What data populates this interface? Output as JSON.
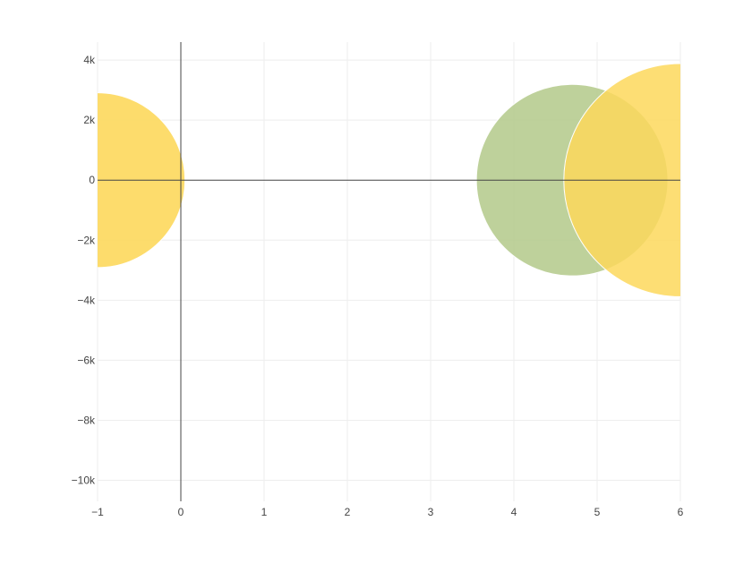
{
  "chart_data": {
    "type": "scatter",
    "subtype": "bubble",
    "title": "",
    "xlabel": "",
    "ylabel": "",
    "xlim": [
      -1,
      6
    ],
    "ylim": [
      -10700,
      4600
    ],
    "x_ticks": [
      -1,
      0,
      1,
      2,
      3,
      4,
      5,
      6
    ],
    "x_tick_labels": [
      "−1",
      "0",
      "1",
      "2",
      "3",
      "4",
      "5",
      "6"
    ],
    "y_ticks": [
      4000,
      2000,
      0,
      -2000,
      -4000,
      -6000,
      -8000,
      -10000
    ],
    "y_tick_labels": [
      "4k",
      "2k",
      "0",
      "−2k",
      "−4k",
      "−6k",
      "−8k",
      "−10k"
    ],
    "grid": true,
    "legend": "none",
    "zero_lines": true,
    "points": [
      {
        "x": -1.0,
        "y": 0,
        "radius_x_units": 1.05,
        "color": "#fdd85c",
        "opacity": 0.9
      },
      {
        "x": 4.7,
        "y": 0,
        "radius_x_units": 1.15,
        "color": "#b3c98a",
        "opacity": 0.85
      },
      {
        "x": 6.0,
        "y": 0,
        "radius_x_units": 1.4,
        "color": "#fdd85c",
        "opacity": 0.85
      }
    ],
    "colors": {
      "grid": "#eeeeee",
      "zero_line": "#444444",
      "tick_text": "#444444"
    }
  }
}
